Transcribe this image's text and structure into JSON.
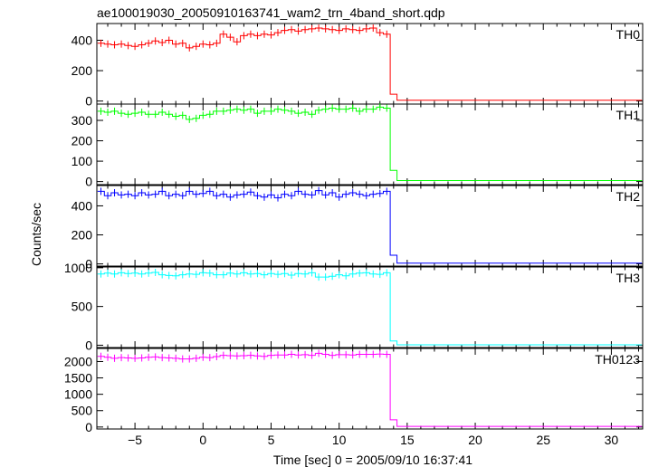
{
  "chart_data": {
    "type": "line",
    "title": "ae100019030_20050910163741_wam2_trn_4band_short.qdp",
    "xlabel": "Time [sec] 0 = 2005/09/10 16:37:41",
    "ylabel": "Counts/sec",
    "xlim": [
      -7.8,
      32.3
    ],
    "x_ticks": [
      -5,
      0,
      5,
      10,
      15,
      20,
      25,
      30
    ],
    "bin_edges": [
      -7.75,
      -7.25,
      -6.75,
      -6.25,
      -5.75,
      -5.25,
      -4.75,
      -4.25,
      -3.75,
      -3.25,
      -2.75,
      -2.25,
      -1.75,
      -1.25,
      -0.75,
      -0.25,
      0.25,
      0.75,
      1.25,
      1.75,
      2.25,
      2.75,
      3.25,
      3.75,
      4.25,
      4.75,
      5.25,
      5.75,
      6.25,
      6.75,
      7.25,
      7.75,
      8.25,
      8.75,
      9.25,
      9.75,
      10.25,
      10.75,
      11.25,
      11.75,
      12.25,
      12.75,
      13.25,
      13.75,
      14.25,
      14.75,
      15.25,
      15.75,
      16.25,
      16.75,
      17.25,
      17.75,
      18.25,
      18.75,
      19.25,
      19.75,
      20.25,
      20.75,
      21.25,
      21.75,
      22.25,
      22.75,
      23.25,
      23.75,
      24.25,
      24.75,
      25.25,
      25.75,
      26.25,
      26.75,
      27.25,
      27.75,
      28.25,
      28.75,
      29.25,
      29.75,
      30.25,
      30.75,
      31.25,
      31.75,
      32.25
    ],
    "panels": [
      {
        "name": "TH0",
        "color": "#ff0000",
        "ylim": [
          -20,
          510
        ],
        "yticks": [
          0,
          200,
          400
        ],
        "values": [
          380,
          375,
          370,
          375,
          365,
          360,
          370,
          380,
          395,
          385,
          400,
          375,
          380,
          350,
          360,
          375,
          370,
          380,
          440,
          420,
          390,
          430,
          440,
          430,
          440,
          435,
          450,
          465,
          470,
          460,
          470,
          475,
          480,
          475,
          470,
          465,
          475,
          470,
          465,
          475,
          480,
          450,
          440,
          45,
          5,
          5,
          5,
          5,
          5,
          5,
          5,
          5,
          5,
          5,
          5,
          5,
          5,
          5,
          5,
          5,
          5,
          5,
          5,
          5,
          5,
          5,
          5,
          5,
          5,
          5,
          5,
          5,
          5,
          5,
          5,
          5,
          5,
          5,
          5,
          5
        ]
      },
      {
        "name": "TH1",
        "color": "#00ff00",
        "ylim": [
          -15,
          380
        ],
        "yticks": [
          0,
          100,
          200,
          300
        ],
        "values": [
          345,
          340,
          345,
          335,
          330,
          335,
          340,
          330,
          330,
          340,
          330,
          320,
          325,
          305,
          310,
          325,
          330,
          345,
          345,
          350,
          355,
          350,
          355,
          335,
          345,
          345,
          355,
          350,
          345,
          335,
          340,
          330,
          350,
          355,
          360,
          355,
          355,
          360,
          345,
          355,
          355,
          365,
          360,
          55,
          5,
          5,
          5,
          5,
          5,
          5,
          5,
          5,
          5,
          5,
          5,
          5,
          5,
          5,
          5,
          5,
          5,
          5,
          5,
          5,
          5,
          5,
          5,
          5,
          5,
          5,
          5,
          5,
          5,
          5,
          5,
          5,
          5,
          5,
          5,
          5
        ]
      },
      {
        "name": "TH2",
        "color": "#0000ff",
        "ylim": [
          -15,
          540
        ],
        "yticks": [
          0,
          200,
          400
        ],
        "values": [
          500,
          470,
          490,
          475,
          480,
          470,
          490,
          475,
          480,
          500,
          470,
          480,
          470,
          500,
          480,
          485,
          500,
          470,
          480,
          460,
          475,
          480,
          495,
          470,
          460,
          475,
          455,
          480,
          470,
          500,
          480,
          475,
          505,
          475,
          490,
          460,
          480,
          490,
          480,
          470,
          480,
          485,
          500,
          60,
          5,
          5,
          5,
          5,
          5,
          5,
          5,
          5,
          5,
          5,
          5,
          5,
          5,
          5,
          5,
          5,
          5,
          5,
          5,
          5,
          5,
          5,
          5,
          5,
          5,
          5,
          5,
          5,
          5,
          5,
          5,
          5,
          5,
          5,
          5,
          5
        ]
      },
      {
        "name": "TH3",
        "color": "#00ffff",
        "ylim": [
          -30,
          1010
        ],
        "yticks": [
          0,
          500,
          1000
        ],
        "values": [
          920,
          930,
          920,
          935,
          925,
          930,
          920,
          930,
          940,
          910,
          900,
          895,
          910,
          920,
          915,
          935,
          930,
          910,
          910,
          930,
          920,
          935,
          920,
          925,
          910,
          925,
          915,
          925,
          905,
          925,
          920,
          935,
          880,
          880,
          890,
          910,
          895,
          920,
          930,
          935,
          920,
          915,
          935,
          55,
          5,
          5,
          5,
          5,
          5,
          5,
          5,
          5,
          5,
          5,
          5,
          5,
          5,
          5,
          5,
          5,
          5,
          5,
          5,
          5,
          5,
          5,
          5,
          5,
          5,
          5,
          5,
          5,
          5,
          5,
          5,
          5,
          5,
          5,
          5,
          5
        ]
      },
      {
        "name": "TH0123",
        "color": "#ff00ff",
        "ylim": [
          -60,
          2400
        ],
        "yticks": [
          0,
          500,
          1000,
          1500,
          2000
        ],
        "values": [
          2160,
          2130,
          2100,
          2120,
          2110,
          2100,
          2110,
          2130,
          2140,
          2120,
          2110,
          2100,
          2080,
          2080,
          2100,
          2130,
          2120,
          2150,
          2190,
          2180,
          2170,
          2180,
          2190,
          2170,
          2160,
          2190,
          2200,
          2200,
          2220,
          2200,
          2210,
          2190,
          2250,
          2220,
          2190,
          2210,
          2210,
          2200,
          2220,
          2220,
          2220,
          2230,
          2220,
          220,
          20,
          20,
          20,
          20,
          20,
          20,
          20,
          20,
          20,
          20,
          20,
          20,
          20,
          20,
          20,
          20,
          20,
          20,
          20,
          20,
          20,
          20,
          20,
          20,
          20,
          20,
          20,
          20,
          20,
          20,
          20,
          20,
          20,
          20,
          20,
          20
        ]
      }
    ]
  }
}
